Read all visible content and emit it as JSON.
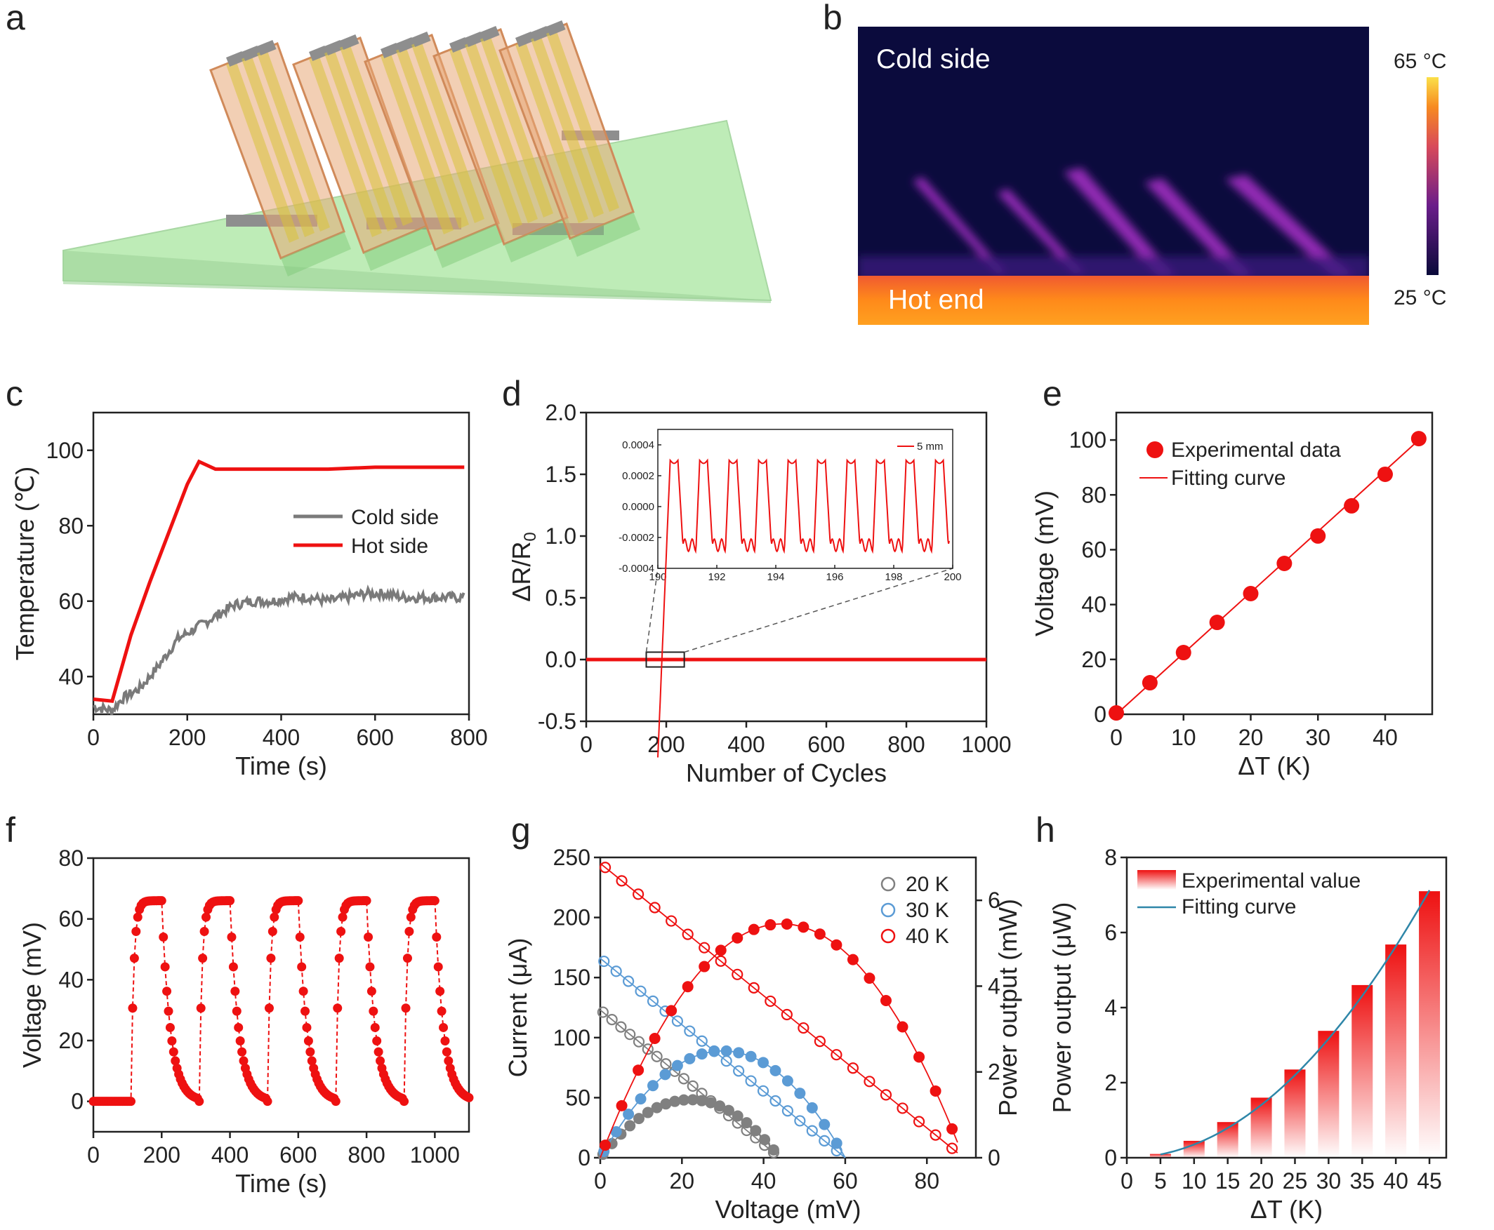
{
  "panels": {
    "a": {
      "label": "a",
      "colors": {
        "substrate": "#b8ebb0",
        "film": "#e8a877",
        "strip": "#d9c23a",
        "electrode": "#8e8e8e"
      }
    },
    "b": {
      "label": "b",
      "cold_text": "Cold side",
      "hot_text": "Hot end",
      "scale_max": "65 °C",
      "scale_min": "25 °C"
    },
    "c": {
      "label": "c"
    },
    "d": {
      "label": "d"
    },
    "e": {
      "label": "e"
    },
    "f": {
      "label": "f"
    },
    "g": {
      "label": "g"
    },
    "h": {
      "label": "h"
    }
  },
  "chart_data": [
    {
      "id": "c",
      "type": "line",
      "xlabel": "Time (s)",
      "ylabel": "Temperature (℃)",
      "xlim": [
        0,
        800
      ],
      "ylim": [
        30,
        110
      ],
      "xticks": [
        0,
        200,
        400,
        600,
        800
      ],
      "yticks": [
        40,
        60,
        80,
        100
      ],
      "legend_position": "center-right",
      "series": [
        {
          "name": "Cold side",
          "color": "#7a7a7a",
          "x": [
            0,
            40,
            60,
            100,
            140,
            180,
            220,
            260,
            300,
            340,
            380,
            420,
            460,
            500,
            540,
            580,
            620,
            660,
            700,
            740,
            790
          ],
          "y": [
            32,
            31,
            34,
            37,
            43,
            50,
            53,
            56,
            59,
            60,
            60,
            61,
            61,
            60,
            61,
            62,
            62,
            61,
            61,
            61,
            61
          ]
        },
        {
          "name": "Hot side",
          "color": "#ee1111",
          "x": [
            0,
            40,
            80,
            120,
            160,
            200,
            225,
            260,
            300,
            400,
            500,
            600,
            700,
            790
          ],
          "y": [
            34,
            33.5,
            51,
            65,
            78,
            91,
            97,
            95,
            95,
            95,
            95,
            95.5,
            95.5,
            95.5
          ]
        }
      ]
    },
    {
      "id": "d",
      "type": "line",
      "xlabel": "Number of Cycles",
      "ylabel": "ΔR/R0",
      "ylabel_main": "ΔR/R",
      "ylabel_sub": "0",
      "xlim": [
        0,
        1000
      ],
      "ylim": [
        -0.5,
        2.0
      ],
      "xticks": [
        0,
        200,
        400,
        600,
        800,
        1000
      ],
      "yticks": [
        -0.5,
        0.0,
        0.5,
        1.0,
        1.5,
        2.0
      ],
      "tick_labels_y": [
        "-0.5",
        "0.0",
        "0.5",
        "1.0",
        "1.5",
        "2.0"
      ],
      "series": [
        {
          "name": "",
          "color": "#ee1111",
          "x": [
            0,
            1000
          ],
          "y": [
            0,
            0
          ]
        }
      ],
      "inset": {
        "legend": "5 mm",
        "xlim": [
          190,
          200
        ],
        "ylim": [
          -0.0004,
          0.0005
        ],
        "xticks": [
          190,
          192,
          194,
          196,
          198,
          200
        ],
        "yticks": [
          -0.0004,
          -0.0002,
          0.0,
          0.0002,
          0.0004
        ],
        "tick_labels_y": [
          "-0.0004",
          "-0.0002",
          "0.0000",
          "0.0002",
          "0.0004"
        ],
        "period": 1.0,
        "amplitude_high": 0.0003,
        "amplitude_low": -0.00025
      }
    },
    {
      "id": "e",
      "type": "scatter",
      "xlabel": "ΔT (K)",
      "ylabel": "Voltage (mV)",
      "xlim": [
        0,
        47
      ],
      "ylim": [
        0,
        110
      ],
      "xticks": [
        0,
        10,
        20,
        30,
        40
      ],
      "yticks": [
        0,
        20,
        40,
        60,
        80,
        100
      ],
      "legend_position": "top-left",
      "series": [
        {
          "name": "Experimental data",
          "color": "#ee1111",
          "x": [
            0,
            5,
            10,
            15,
            20,
            25,
            30,
            35,
            40,
            45
          ],
          "y": [
            0.5,
            11.5,
            22.5,
            33.5,
            44,
            55,
            65,
            76,
            87.5,
            100.5
          ]
        },
        {
          "name": "Fitting curve",
          "color": "#ee1111",
          "x": [
            0,
            45
          ],
          "y": [
            0,
            100
          ]
        }
      ]
    },
    {
      "id": "f",
      "type": "line",
      "xlabel": "Time (s)",
      "ylabel": "Voltage (mV)",
      "xlim": [
        0,
        1100
      ],
      "ylim": [
        -10,
        80
      ],
      "xticks": [
        0,
        200,
        400,
        600,
        800,
        1000
      ],
      "yticks": [
        0,
        20,
        40,
        60,
        80
      ],
      "series": [
        {
          "name": "",
          "color": "#ee1111",
          "on_times": [
            110,
            310,
            510,
            710,
            910
          ],
          "off_times": [
            200,
            400,
            600,
            800,
            1000
          ],
          "high": 66,
          "low": 0
        }
      ]
    },
    {
      "id": "g",
      "type": "scatter",
      "xlabel": "Voltage (mV)",
      "ylabel": "Current (μA)",
      "y2label": "Power output (mW)",
      "xlim": [
        0,
        92
      ],
      "ylim": [
        0,
        250
      ],
      "y2lim": [
        0,
        7
      ],
      "xticks": [
        0,
        20,
        40,
        60,
        80
      ],
      "yticks": [
        0,
        50,
        100,
        150,
        200,
        250
      ],
      "y2ticks": [
        0,
        2,
        4,
        6
      ],
      "legend_position": "top-right",
      "series": [
        {
          "name": "20 K",
          "color": "#808080",
          "voc": 44,
          "isc": 123,
          "n": 20
        },
        {
          "name": "30 K",
          "color": "#5b9bd5",
          "voc": 60,
          "isc": 166,
          "n": 20
        },
        {
          "name": "40 K",
          "color": "#ee1111",
          "voc": 89,
          "isc": 245,
          "n": 22
        }
      ]
    },
    {
      "id": "h",
      "type": "bar",
      "xlabel": "ΔT (K)",
      "ylabel": "Power output (μW)",
      "xlim": [
        0,
        47.5
      ],
      "ylim": [
        0,
        8
      ],
      "xticks": [
        0,
        5,
        10,
        15,
        20,
        25,
        30,
        35,
        40,
        45
      ],
      "yticks": [
        0,
        2,
        4,
        6,
        8
      ],
      "legend_position": "top-left",
      "categories": [
        5,
        10,
        15,
        20,
        25,
        30,
        35,
        40,
        45
      ],
      "series": [
        {
          "name": "Experimental value",
          "color": "#ee1111",
          "values": [
            0.1,
            0.45,
            0.95,
            1.6,
            2.35,
            3.38,
            4.6,
            5.68,
            7.1
          ]
        },
        {
          "name": "Fitting curve",
          "color": "#2e86a8",
          "coef": 0.00352
        }
      ]
    }
  ]
}
